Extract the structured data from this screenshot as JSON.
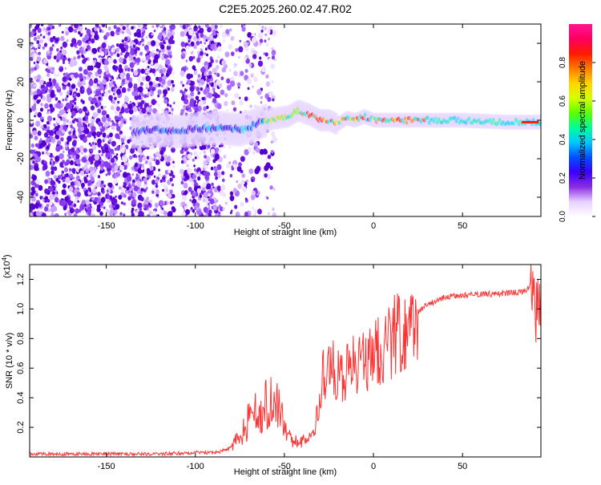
{
  "title": "C2E5.2025.260.02.47.R02",
  "chart_data": [
    {
      "type": "heatmap",
      "xlabel": "Height of straight line (km)",
      "ylabel": "Frequency (Hz)",
      "xlim": [
        -193,
        94
      ],
      "ylim": [
        -50,
        50
      ],
      "xticks": [
        -150,
        -100,
        -50,
        0,
        50
      ],
      "yticks": [
        -40,
        -20,
        0,
        20,
        40
      ],
      "colorbar": {
        "label": "Normalized spectral amplitude",
        "range": [
          0,
          1
        ],
        "ticks": [
          "0.0",
          "0.2",
          "0.4",
          "0.6",
          "0.8"
        ],
        "tick_values": [
          0.0,
          0.2,
          0.4,
          0.6,
          0.8
        ],
        "colors": [
          "#ffffff",
          "#e6d0ff",
          "#8a2be2",
          "#3a00ff",
          "#0050ff",
          "#00c8ff",
          "#00ff9a",
          "#5cff00",
          "#d6ff00",
          "#ffd400",
          "#ff7a00",
          "#ff1a00",
          "#ff0060",
          "#ff1493"
        ]
      },
      "ridge": [
        {
          "x": -135,
          "f": -6
        },
        {
          "x": -120,
          "f": -5
        },
        {
          "x": -110,
          "f": -6
        },
        {
          "x": -95,
          "f": -4
        },
        {
          "x": -85,
          "f": -4
        },
        {
          "x": -75,
          "f": -5
        },
        {
          "x": -68,
          "f": -3
        },
        {
          "x": -60,
          "f": 0
        },
        {
          "x": -55,
          "f": 1
        },
        {
          "x": -48,
          "f": 2
        },
        {
          "x": -42,
          "f": 5
        },
        {
          "x": -36,
          "f": 3
        },
        {
          "x": -30,
          "f": 0
        },
        {
          "x": -25,
          "f": 0
        },
        {
          "x": -20,
          "f": -2
        },
        {
          "x": -15,
          "f": 1
        },
        {
          "x": -10,
          "f": 0
        },
        {
          "x": -5,
          "f": 2
        },
        {
          "x": 0,
          "f": 0
        },
        {
          "x": 10,
          "f": 0
        },
        {
          "x": 25,
          "f": 0
        },
        {
          "x": 50,
          "f": 0
        },
        {
          "x": 75,
          "f": -1
        },
        {
          "x": 94,
          "f": -1
        }
      ]
    },
    {
      "type": "line",
      "xlabel": "Height of straight line (km)",
      "ylabel": "SNR (10 * v/v)",
      "multiplier_label": "(x10",
      "multiplier_exp": "4",
      "xlim": [
        -193,
        94
      ],
      "ylim": [
        0,
        1.3
      ],
      "xticks": [
        -150,
        -100,
        -50,
        0,
        50
      ],
      "yticks": [
        "0.2",
        "0.4",
        "0.6",
        "0.8",
        "1.0",
        "1.2"
      ],
      "ytick_values": [
        0.2,
        0.4,
        0.6,
        0.8,
        1.0,
        1.2
      ],
      "color": "#ff3333",
      "envelope": [
        {
          "x": -193,
          "y": 0.02
        },
        {
          "x": -120,
          "y": 0.02
        },
        {
          "x": -100,
          "y": 0.03
        },
        {
          "x": -88,
          "y": 0.03
        },
        {
          "x": -80,
          "y": 0.06
        },
        {
          "x": -75,
          "y": 0.14
        },
        {
          "x": -70,
          "y": 0.25
        },
        {
          "x": -65,
          "y": 0.3
        },
        {
          "x": -60,
          "y": 0.35
        },
        {
          "x": -56,
          "y": 0.38
        },
        {
          "x": -53,
          "y": 0.3
        },
        {
          "x": -50,
          "y": 0.2
        },
        {
          "x": -45,
          "y": 0.1
        },
        {
          "x": -40,
          "y": 0.1
        },
        {
          "x": -35,
          "y": 0.13
        },
        {
          "x": -32,
          "y": 0.25
        },
        {
          "x": -30,
          "y": 0.45
        },
        {
          "x": -28,
          "y": 0.55
        },
        {
          "x": -24,
          "y": 0.62
        },
        {
          "x": -20,
          "y": 0.58
        },
        {
          "x": -17,
          "y": 0.55
        },
        {
          "x": -14,
          "y": 0.6
        },
        {
          "x": -10,
          "y": 0.65
        },
        {
          "x": -5,
          "y": 0.62
        },
        {
          "x": 0,
          "y": 0.68
        },
        {
          "x": 5,
          "y": 0.76
        },
        {
          "x": 10,
          "y": 0.8
        },
        {
          "x": 15,
          "y": 0.86
        },
        {
          "x": 20,
          "y": 0.93
        },
        {
          "x": 25,
          "y": 0.98
        },
        {
          "x": 30,
          "y": 1.03
        },
        {
          "x": 40,
          "y": 1.08
        },
        {
          "x": 50,
          "y": 1.09
        },
        {
          "x": 60,
          "y": 1.1
        },
        {
          "x": 70,
          "y": 1.1
        },
        {
          "x": 80,
          "y": 1.11
        },
        {
          "x": 86,
          "y": 1.12
        },
        {
          "x": 89,
          "y": 1.2
        },
        {
          "x": 91,
          "y": 0.9
        },
        {
          "x": 92,
          "y": 1.1
        },
        {
          "x": 94,
          "y": 1.08
        }
      ]
    }
  ]
}
